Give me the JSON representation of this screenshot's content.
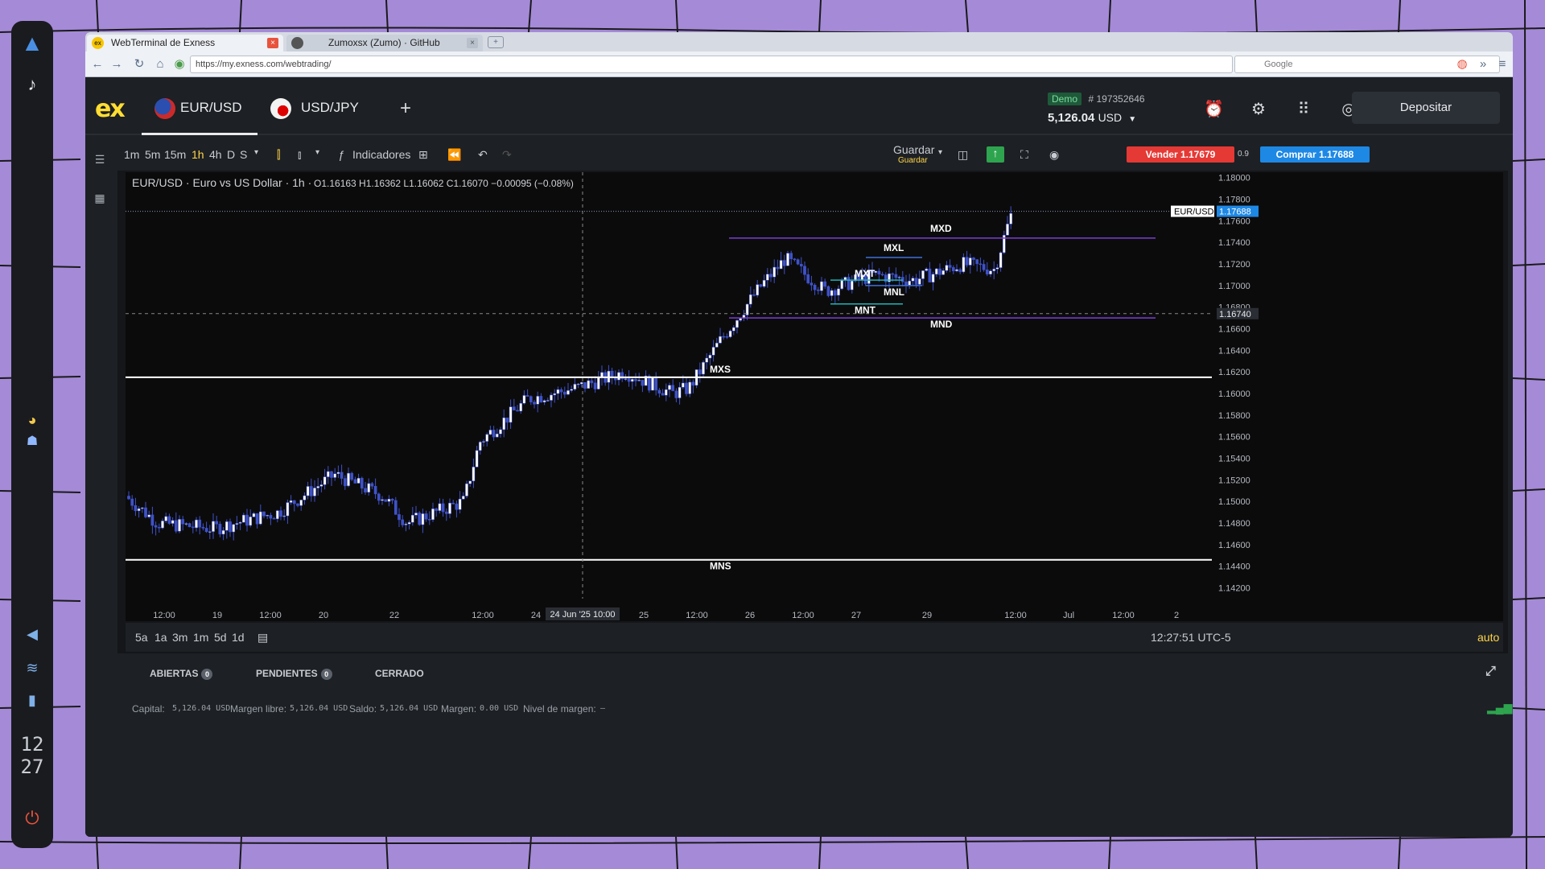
{
  "dock": {
    "clock_hour": "12",
    "clock_min": "27"
  },
  "browser": {
    "tabs": [
      {
        "label": "WebTerminal de Exness",
        "fav": "ex"
      },
      {
        "label": "Zumoxsx (Zumo) · GitHub",
        "fav": ""
      }
    ],
    "url": "https://my.exness.com/webtrading/",
    "search_placeholder": "Google"
  },
  "header": {
    "symbols": [
      {
        "label": "EUR/USD"
      },
      {
        "label": "USD/JPY"
      }
    ],
    "add": "+",
    "account_mode": "Demo",
    "account_id": "# 197352646",
    "balance": "5,126.04",
    "currency": "USD",
    "deposit": "Depositar"
  },
  "toolbar": {
    "timeframes": [
      "1m",
      "5m",
      "15m",
      "1h",
      "4h",
      "D",
      "S"
    ],
    "active_timeframe": "1h",
    "indicators": "Indicadores",
    "save": "Guardar",
    "save_sub": "Guardar",
    "sell": "Vender 1.17679",
    "spread": "0.9",
    "buy": "Comprar 1.17688"
  },
  "chart_legend": {
    "title": "EUR/USD · Euro vs US Dollar · 1h ·",
    "ohlc": "O1.16163  H1.16362  L1.16062  C1.16070  −0.00095 (−0.08%)"
  },
  "chart_data": {
    "type": "candlestick",
    "symbol": "EUR/USD",
    "interval": "1h",
    "ylim": [
      1.141,
      1.1805
    ],
    "y_ticks": [
      "1.18000",
      "1.17800",
      "1.17600",
      "1.17400",
      "1.17200",
      "1.17000",
      "1.16800",
      "1.16600",
      "1.16400",
      "1.16200",
      "1.16000",
      "1.15800",
      "1.15600",
      "1.15400",
      "1.15200",
      "1.15000",
      "1.14800",
      "1.14600",
      "1.14400",
      "1.14200"
    ],
    "x_ticks": [
      "12:00",
      "19",
      "12:00",
      "20",
      "22",
      "12:00",
      "24",
      "25",
      "12:00",
      "26",
      "12:00",
      "27",
      "29",
      "12:00",
      "Jul",
      "12:00",
      "2"
    ],
    "crosshair_label": "24 Jun '25  10:00",
    "price_label_symbol": "EUR/USD",
    "last_price": "1.17688",
    "crosshair_price": "1.16740",
    "levels": [
      {
        "name": "MXD",
        "price": 1.1744,
        "color": "#7b3fd0"
      },
      {
        "name": "MND",
        "price": 1.167,
        "color": "#7b3fd0"
      },
      {
        "name": "MXS",
        "price": 1.1615,
        "color": "#ffffff"
      },
      {
        "name": "MNS",
        "price": 1.1446,
        "color": "#ffffff"
      },
      {
        "name": "MXL",
        "price": 1.1726,
        "color": "#3f6fd8"
      },
      {
        "name": "MNL",
        "price": 1.17,
        "color": "#3f6fd8"
      },
      {
        "name": "MXT",
        "price": 1.1705,
        "color": "#21b5b5"
      },
      {
        "name": "MNT",
        "price": 1.1683,
        "color": "#21b5b5"
      }
    ]
  },
  "range": {
    "buttons": [
      "5a",
      "1a",
      "3m",
      "1m",
      "5d",
      "1d"
    ],
    "time": "12:27:51 UTC-5",
    "auto": "auto"
  },
  "bottom": {
    "tabs": [
      {
        "label": "ABIERTAS",
        "count": "0"
      },
      {
        "label": "PENDIENTES",
        "count": "0"
      },
      {
        "label": "CERRADO",
        "count": ""
      }
    ]
  },
  "status": {
    "capital_label": "Capital:",
    "capital": "5,126.04 USD",
    "free_label": "Margen libre:",
    "free": "5,126.04 USD",
    "saldo_label": "Saldo:",
    "saldo": "5,126.04 USD",
    "margin_label": "Margen:",
    "margin": "0.00 USD",
    "level_label": "Nivel de margen:",
    "level": "–"
  }
}
